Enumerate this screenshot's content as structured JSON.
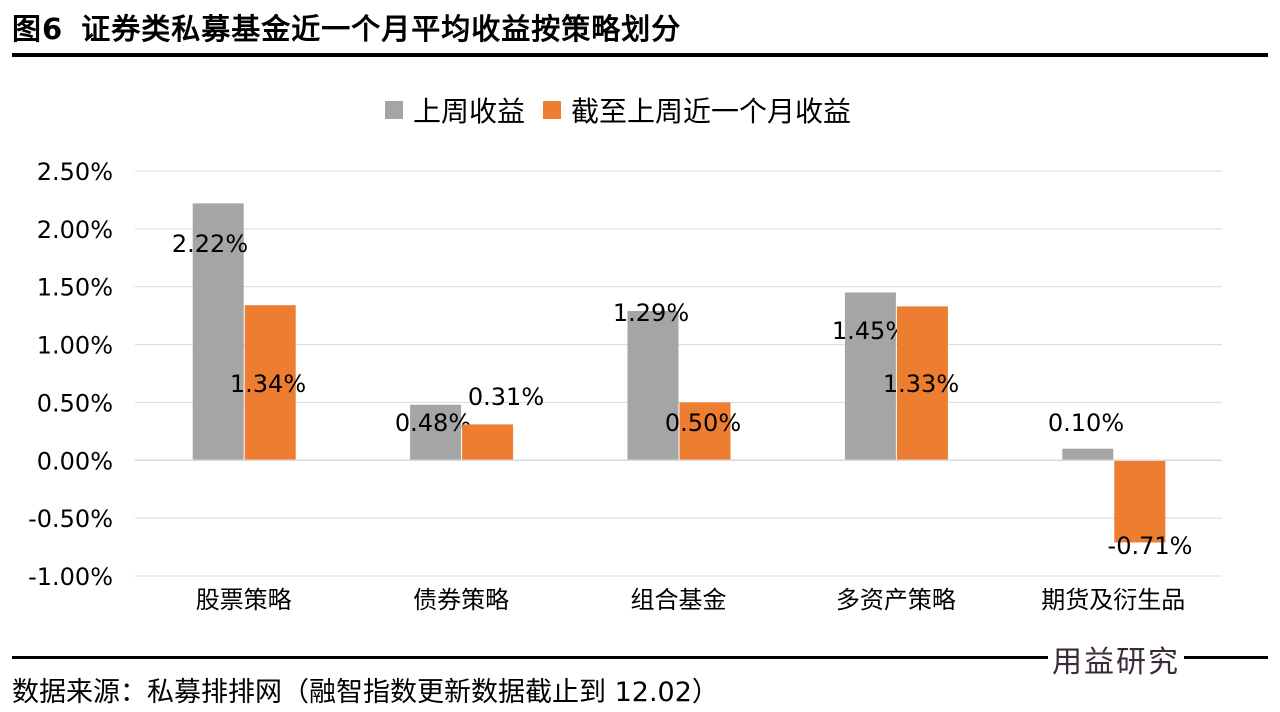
{
  "header": {
    "figure_number": "图6",
    "title": "证券类私募基金近一个月平均收益按策略划分"
  },
  "source": "数据来源：私募排排网（融智指数更新数据截止到 12.02）",
  "watermark": "用益研究",
  "chart_data": {
    "type": "bar",
    "title": "",
    "xlabel": "",
    "ylabel": "",
    "categories": [
      "股票策略",
      "债券策略",
      "组合基金",
      "多资产策略",
      "期货及衍生品"
    ],
    "series": [
      {
        "name": "上周收益",
        "color": "#a5a5a5",
        "values": [
          2.22,
          0.48,
          1.29,
          1.45,
          0.1
        ],
        "labels": [
          "2.22%",
          "0.48%",
          "1.29%",
          "1.45%",
          "0.10%"
        ]
      },
      {
        "name": "截至上周近一个月收益",
        "color": "#ed7d31",
        "values": [
          1.34,
          0.31,
          0.5,
          1.33,
          -0.71
        ],
        "labels": [
          "1.34%",
          "0.31%",
          "0.50%",
          "1.33%",
          "-0.71%"
        ]
      }
    ],
    "ylim": [
      -1.0,
      2.5
    ],
    "yticks": [
      "2.50%",
      "2.00%",
      "1.50%",
      "1.00%",
      "0.50%",
      "0.00%",
      "-0.50%",
      "-1.00%"
    ],
    "ytick_values": [
      2.5,
      2.0,
      1.5,
      1.0,
      0.5,
      0.0,
      -0.5,
      -1.0
    ],
    "grid": true,
    "legend": "top-center"
  }
}
